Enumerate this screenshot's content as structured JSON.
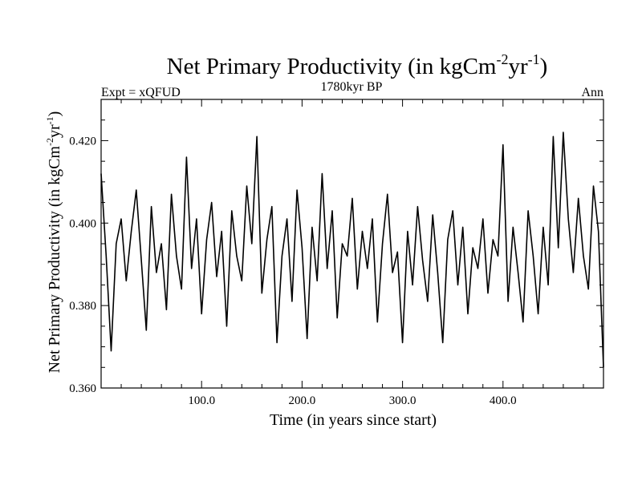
{
  "chart_data": {
    "type": "line",
    "title_main": "Net Primary Productivity (in kgCm",
    "title_sup1": "-2",
    "title_mid": "yr",
    "title_sup2": "-1",
    "title_end": ")",
    "subtitle_left": "Expt = xQFUD",
    "subtitle_center": "1780kyr BP",
    "subtitle_right": "Ann",
    "xlabel": "Time (in years since start)",
    "ylabel_main": "Net Primary Productivity (in kgCm",
    "ylabel_sup1": "-2",
    "ylabel_mid": "yr",
    "ylabel_sup2": "-1",
    "ylabel_end": ")",
    "xlim": [
      0,
      500
    ],
    "ylim": [
      0.36,
      0.43
    ],
    "x_ticks": [
      100,
      200,
      300,
      400
    ],
    "x_tick_labels": [
      "100.0",
      "200.0",
      "300.0",
      "400.0"
    ],
    "y_ticks": [
      0.36,
      0.38,
      0.4,
      0.42
    ],
    "y_tick_labels": [
      "0.360",
      "0.380",
      "0.400",
      "0.420"
    ],
    "grid": false,
    "line_color": "#000000",
    "series": [
      {
        "x": [
          0,
          5,
          10,
          15,
          20,
          25,
          30,
          35,
          40,
          45,
          50,
          55,
          60,
          65,
          70,
          75,
          80,
          85,
          90,
          95,
          100,
          105,
          110,
          115,
          120,
          125,
          130,
          135,
          140,
          145,
          150,
          155,
          160,
          165,
          170,
          175,
          180,
          185,
          190,
          195,
          200,
          205,
          210,
          215,
          220,
          225,
          230,
          235,
          240,
          245,
          250,
          255,
          260,
          265,
          270,
          275,
          280,
          285,
          290,
          295,
          300,
          305,
          310,
          315,
          320,
          325,
          330,
          335,
          340,
          345,
          350,
          355,
          360,
          365,
          370,
          375,
          380,
          385,
          390,
          395,
          400,
          405,
          410,
          415,
          420,
          425,
          430,
          435,
          440,
          445,
          450,
          455,
          460,
          465,
          470,
          475,
          480,
          485,
          490,
          495,
          500
        ],
        "values": [
          0.412,
          0.392,
          0.369,
          0.395,
          0.401,
          0.386,
          0.398,
          0.408,
          0.391,
          0.374,
          0.404,
          0.388,
          0.395,
          0.379,
          0.407,
          0.392,
          0.384,
          0.416,
          0.389,
          0.401,
          0.378,
          0.396,
          0.405,
          0.387,
          0.398,
          0.375,
          0.403,
          0.392,
          0.386,
          0.409,
          0.395,
          0.421,
          0.383,
          0.396,
          0.404,
          0.371,
          0.392,
          0.401,
          0.381,
          0.408,
          0.394,
          0.372,
          0.399,
          0.386,
          0.412,
          0.389,
          0.403,
          0.377,
          0.395,
          0.392,
          0.406,
          0.384,
          0.398,
          0.389,
          0.401,
          0.376,
          0.395,
          0.407,
          0.388,
          0.393,
          0.371,
          0.398,
          0.385,
          0.404,
          0.391,
          0.381,
          0.402,
          0.388,
          0.371,
          0.396,
          0.403,
          0.385,
          0.399,
          0.378,
          0.394,
          0.389,
          0.401,
          0.383,
          0.396,
          0.392,
          0.419,
          0.381,
          0.399,
          0.388,
          0.376,
          0.403,
          0.392,
          0.378,
          0.399,
          0.385,
          0.421,
          0.394,
          0.422,
          0.401,
          0.388,
          0.406,
          0.392,
          0.384,
          0.409,
          0.398,
          0.365
        ]
      }
    ]
  }
}
